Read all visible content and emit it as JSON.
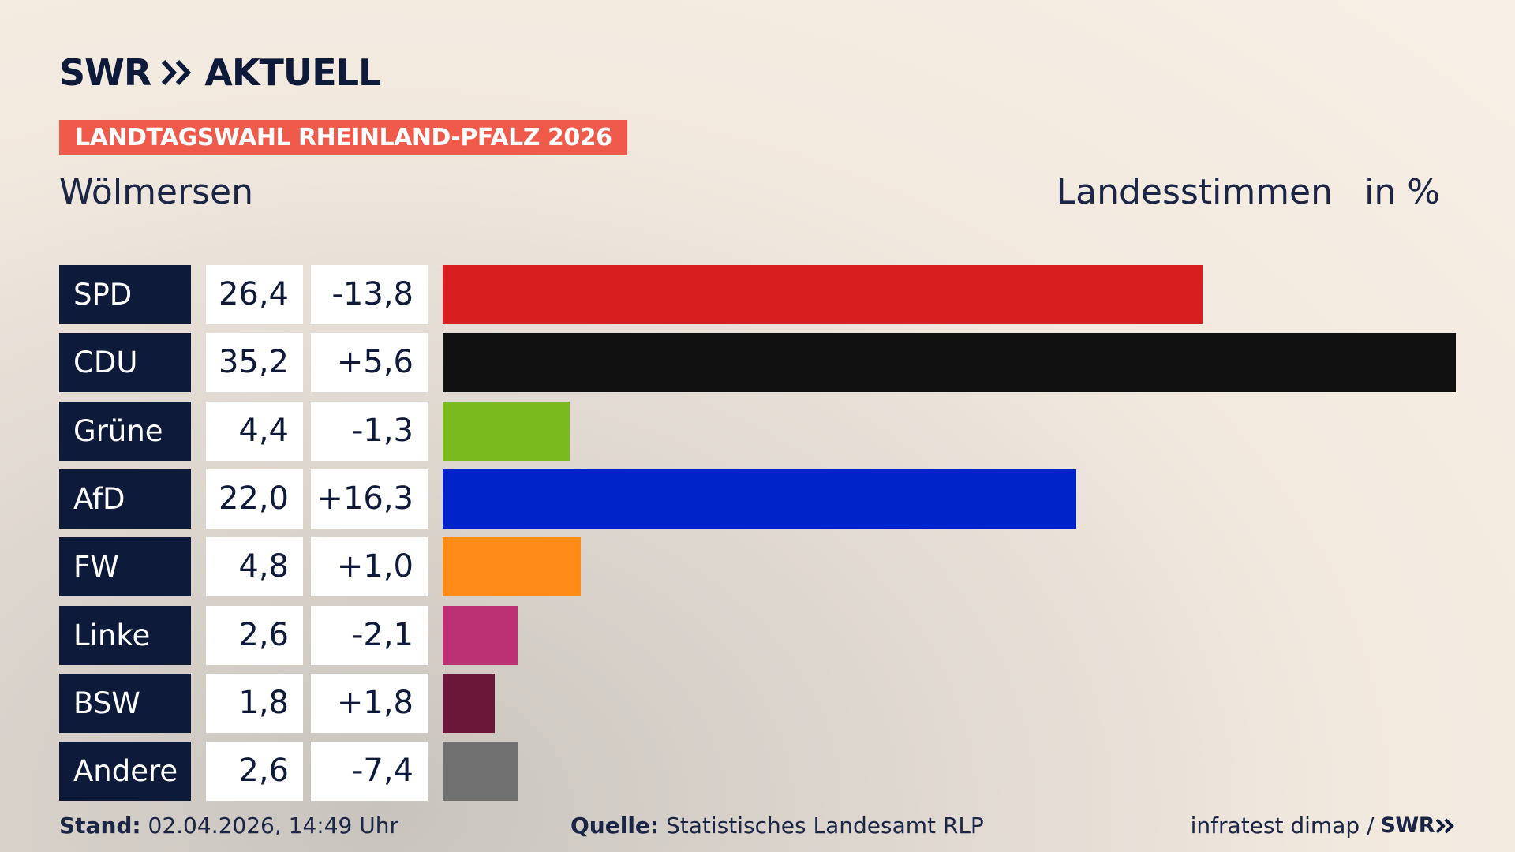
{
  "brand": {
    "swr": "SWR",
    "aktuell": "AKTUELL"
  },
  "badge": "LANDTAGSWAHL RHEINLAND-PFALZ 2026",
  "place": "Wölmersen",
  "header": {
    "stimmen": "Landesstimmen",
    "unit": "in %"
  },
  "chart_data": {
    "type": "bar",
    "orientation": "horizontal",
    "categories": [
      "SPD",
      "CDU",
      "Grüne",
      "AfD",
      "FW",
      "Linke",
      "BSW",
      "Andere"
    ],
    "values": [
      26.4,
      35.2,
      4.4,
      22.0,
      4.8,
      2.6,
      1.8,
      2.6
    ],
    "value_labels": [
      "26,4",
      "35,2",
      "4,4",
      "22,0",
      "4,8",
      "2,6",
      "1,8",
      "2,6"
    ],
    "diff_labels": [
      "-13,8",
      "+5,6",
      "-1,3",
      "+16,3",
      "+1,0",
      "-2,1",
      "+1,8",
      "-7,4"
    ],
    "colors": [
      "#d81f20",
      "#111111",
      "#7aba1f",
      "#0022c9",
      "#ff8a16",
      "#bb3174",
      "#6b1739",
      "#717171"
    ],
    "grid": false
  },
  "footer": {
    "stand_label": "Stand:",
    "stand_value": "02.04.2026, 14:49 Uhr",
    "quelle_label": "Quelle:",
    "quelle_value": "Statistisches Landesamt RLP",
    "credit": "infratest dimap /",
    "credit_brand": "SWR"
  }
}
